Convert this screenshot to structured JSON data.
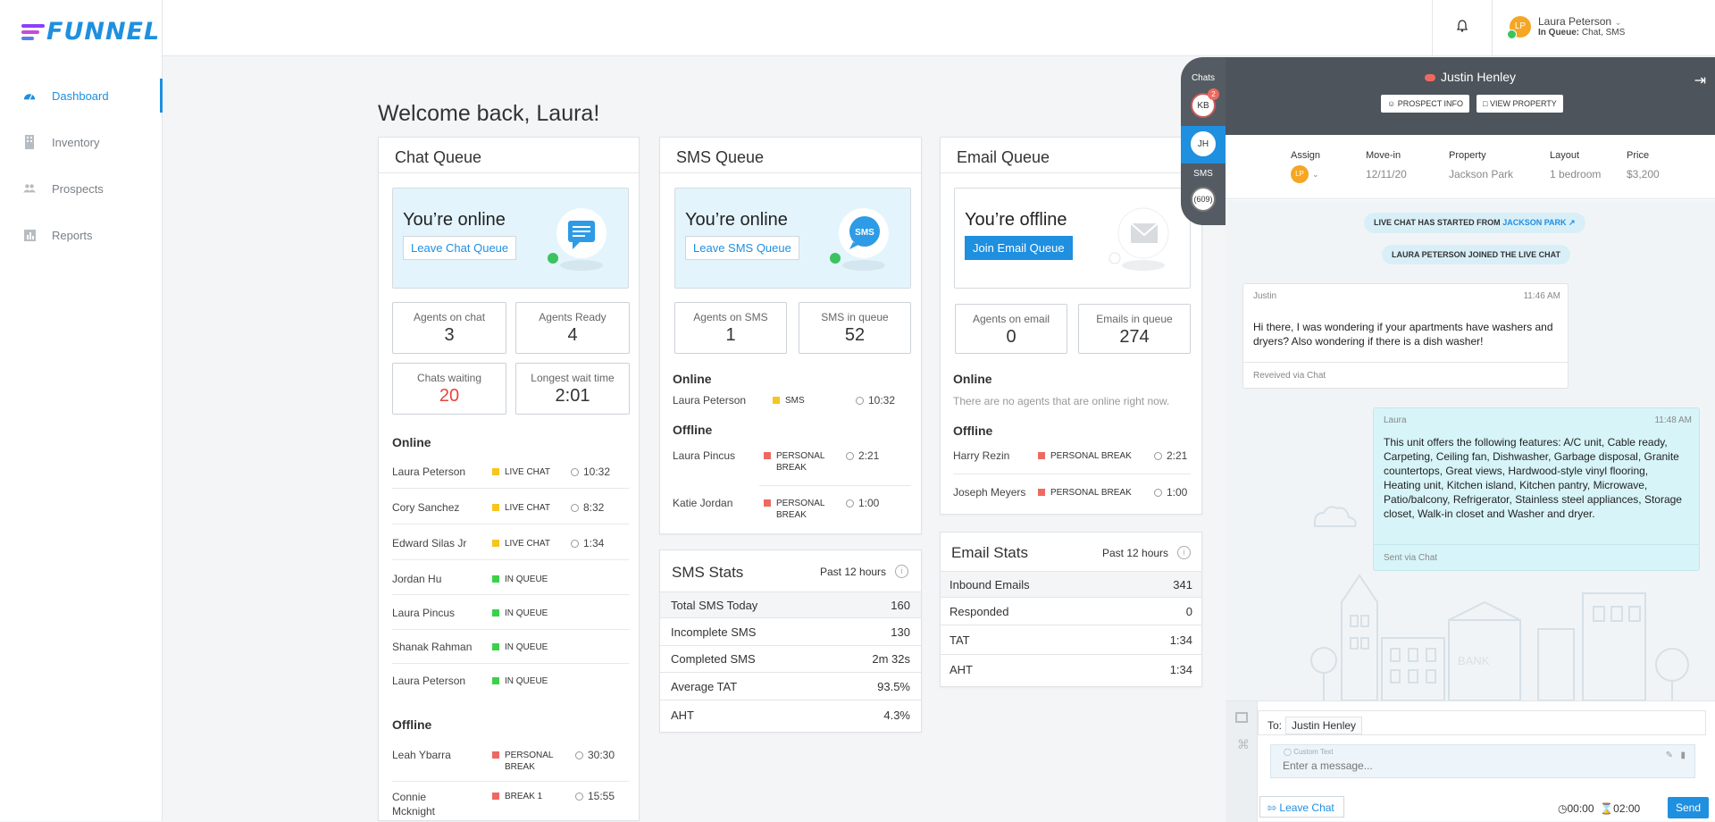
{
  "brand": {
    "name": "FUNNEL",
    "accent": "#1f8fe0"
  },
  "sidebar": {
    "items": [
      {
        "label": "Dashboard",
        "icon": "dashboard-icon"
      },
      {
        "label": "Inventory",
        "icon": "building-icon"
      },
      {
        "label": "Prospects",
        "icon": "people-icon"
      },
      {
        "label": "Reports",
        "icon": "chart-icon"
      }
    ]
  },
  "user": {
    "initials": "LP",
    "name": "Laura Peterson",
    "status_label": "In Queue:",
    "status_value": "Chat, SMS"
  },
  "welcome": "Welcome back, Laura!",
  "chat_queue": {
    "title": "Chat Queue",
    "status": "You’re online",
    "button": "Leave Chat Queue",
    "stats": [
      {
        "label": "Agents on chat",
        "value": "3"
      },
      {
        "label": "Agents Ready",
        "value": "4"
      },
      {
        "label": "Chats waiting",
        "value": "20"
      },
      {
        "label": "Longest wait time",
        "value": "2:01"
      }
    ],
    "online_title": "Online",
    "online": [
      {
        "name": "Laura Peterson",
        "tag": "LIVE CHAT",
        "time": "10:32"
      },
      {
        "name": "Cory Sanchez",
        "tag": "LIVE CHAT",
        "time": "8:32"
      },
      {
        "name": "Edward Silas Jr",
        "tag": "LIVE CHAT",
        "time": "1:34"
      },
      {
        "name": "Jordan Hu",
        "tag": "IN QUEUE",
        "time": ""
      },
      {
        "name": "Laura Pincus",
        "tag": "IN QUEUE",
        "time": ""
      },
      {
        "name": "Shanak Rahman",
        "tag": "IN QUEUE",
        "time": ""
      },
      {
        "name": "Laura Peterson",
        "tag": "IN QUEUE",
        "time": ""
      }
    ],
    "offline_title": "Offline",
    "offline": [
      {
        "name": "Leah Ybarra",
        "tag": "PERSONAL BREAK",
        "time": "30:30"
      },
      {
        "name": "Connie Mcknight",
        "tag": "BREAK 1",
        "time": "15:55"
      }
    ]
  },
  "sms_queue": {
    "title": "SMS Queue",
    "status": "You’re online",
    "button": "Leave SMS Queue",
    "stats": [
      {
        "label": "Agents on SMS",
        "value": "1"
      },
      {
        "label": "SMS in queue",
        "value": "52"
      }
    ],
    "online_title": "Online",
    "online": [
      {
        "name": "Laura Peterson",
        "tag": "SMS",
        "time": "10:32"
      }
    ],
    "offline_title": "Offline",
    "offline": [
      {
        "name": "Laura Pincus",
        "tag": "PERSONAL BREAK",
        "time": "2:21"
      },
      {
        "name": "Katie Jordan",
        "tag": "PERSONAL BREAK",
        "time": "1:00"
      }
    ]
  },
  "sms_stats": {
    "title": "SMS Stats",
    "period": "Past 12 hours",
    "rows": [
      {
        "label": "Total SMS Today",
        "value": "160"
      },
      {
        "label": "Incomplete SMS",
        "value": "130"
      },
      {
        "label": "Completed SMS",
        "value": "2m 32s"
      },
      {
        "label": "Average TAT",
        "value": "93.5%"
      },
      {
        "label": "AHT",
        "value": "4.3%"
      }
    ]
  },
  "email_queue": {
    "title": "Email Queue",
    "status": "You’re offline",
    "button": "Join Email Queue",
    "stats": [
      {
        "label": "Agents on email",
        "value": "0"
      },
      {
        "label": "Emails in queue",
        "value": "274"
      }
    ],
    "online_title": "Online",
    "online_empty": "There are no agents that are online right now.",
    "offline_title": "Offline",
    "offline": [
      {
        "name": "Harry Rezin",
        "tag": "PERSONAL BREAK",
        "time": "2:21"
      },
      {
        "name": "Joseph Meyers",
        "tag": "PERSONAL BREAK",
        "time": "1:00"
      }
    ]
  },
  "email_stats": {
    "title": "Email Stats",
    "period": "Past 12 hours",
    "rows": [
      {
        "label": "Inbound Emails",
        "value": "341"
      },
      {
        "label": "Responded",
        "value": "0"
      },
      {
        "label": "TAT",
        "value": "1:34"
      },
      {
        "label": "AHT",
        "value": "1:34"
      }
    ]
  },
  "rail": {
    "chats_label": "Chats",
    "sms_label": "SMS",
    "chat1": "KB",
    "chat1_badge": "2",
    "chat2": "JH",
    "sms_count": "(609)"
  },
  "chat": {
    "contact": "Justin Henley",
    "prospect_info": "PROSPECT INFO",
    "view_property": "VIEW PROPERTY",
    "meta": [
      {
        "label": "Assign",
        "value": "LP"
      },
      {
        "label": "Move-in",
        "value": "12/11/20"
      },
      {
        "label": "Property",
        "value": "Jackson Park"
      },
      {
        "label": "Layout",
        "value": "1 bedroom"
      },
      {
        "label": "Price",
        "value": "$3,200"
      }
    ],
    "started_pill": "LIVE CHAT HAS STARTED FROM",
    "started_link": "JACKSON PARK",
    "joined_pill": "LAURA PETERSON JOINED THE LIVE CHAT",
    "in_msg": {
      "who": "Justin",
      "time": "11:46 AM",
      "text": "Hi there, I was wondering if your apartments have washers and dryers? Also wondering if there is a dish washer!",
      "via": "Reveived via Chat"
    },
    "out_msg": {
      "who": "Laura",
      "time": "11:48 AM",
      "text": "This unit offers the following features: A/C unit, Cable ready, Carpeting, Ceiling fan, Dishwasher, Garbage disposal, Granite countertops, Great views, Hardwood-style vinyl flooring, Heating unit, Kitchen island, Kitchen pantry, Microwave, Patio/balcony, Refrigerator, Stainless steel appliances, Storage closet, Walk-in closet and Washer and dryer.",
      "via": "Sent via Chat"
    },
    "bank_label": "BANK",
    "to_label": "To:",
    "to_value": "Justin Henley",
    "custom_text": "Custom Text",
    "placeholder": "Enter a message...",
    "leave": "Leave Chat",
    "timer1": "00:00",
    "timer2": "02:00",
    "send": "Send"
  }
}
